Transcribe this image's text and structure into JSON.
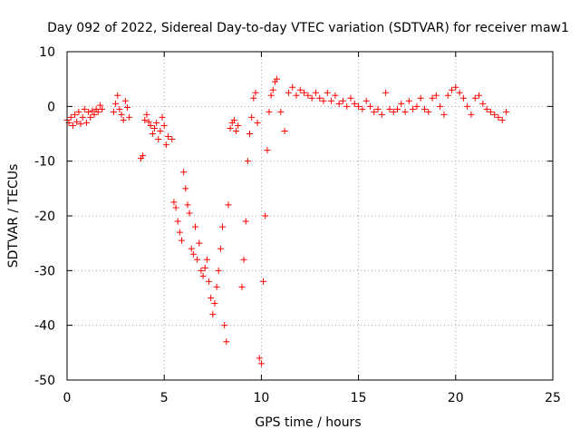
{
  "chart_data": {
    "type": "scatter",
    "title": "Day 092 of 2022, Sidereal Day-to-day VTEC variation (SDTVAR) for receiver maw1",
    "xlabel": "GPS time / hours",
    "ylabel": "SDTVAR / TECUs",
    "xlim": [
      0,
      25
    ],
    "ylim": [
      -50,
      10
    ],
    "xticks": [
      0,
      5,
      10,
      15,
      20,
      25
    ],
    "yticks": [
      -50,
      -40,
      -30,
      -20,
      -10,
      0,
      10
    ],
    "grid": true,
    "marker": "+",
    "series": [
      {
        "name": "SDTVAR",
        "color": "#ff0000",
        "x": [
          0.0,
          0.1,
          0.2,
          0.3,
          0.4,
          0.5,
          0.6,
          0.7,
          0.8,
          0.9,
          1.0,
          1.1,
          1.2,
          1.3,
          1.4,
          1.5,
          1.6,
          1.7,
          1.8,
          2.4,
          2.5,
          2.6,
          2.7,
          2.8,
          2.9,
          3.0,
          3.1,
          3.2,
          3.8,
          3.9,
          4.0,
          4.1,
          4.2,
          4.3,
          4.4,
          4.5,
          4.6,
          4.7,
          4.8,
          4.9,
          5.0,
          5.1,
          5.2,
          5.4,
          5.5,
          5.6,
          5.7,
          5.8,
          5.9,
          6.0,
          6.1,
          6.2,
          6.3,
          6.4,
          6.5,
          6.6,
          6.7,
          6.8,
          6.9,
          7.0,
          7.1,
          7.2,
          7.3,
          7.4,
          7.5,
          7.6,
          7.7,
          7.8,
          7.9,
          8.0,
          8.1,
          8.2,
          8.3,
          8.4,
          8.5,
          8.6,
          8.7,
          8.8,
          9.0,
          9.1,
          9.2,
          9.3,
          9.4,
          9.5,
          9.6,
          9.7,
          9.8,
          9.9,
          10.0,
          10.1,
          10.2,
          10.3,
          10.4,
          10.5,
          10.6,
          10.7,
          10.8,
          11.0,
          11.2,
          11.4,
          11.6,
          11.8,
          12.0,
          12.2,
          12.4,
          12.6,
          12.8,
          13.0,
          13.2,
          13.4,
          13.6,
          13.8,
          14.0,
          14.2,
          14.4,
          14.6,
          14.8,
          15.0,
          15.2,
          15.4,
          15.6,
          15.8,
          16.0,
          16.2,
          16.4,
          16.6,
          16.8,
          17.0,
          17.2,
          17.4,
          17.6,
          17.8,
          18.0,
          18.2,
          18.4,
          18.6,
          18.8,
          19.0,
          19.2,
          19.4,
          19.6,
          19.8,
          20.0,
          20.2,
          20.4,
          20.6,
          20.8,
          21.0,
          21.2,
          21.4,
          21.6,
          21.8,
          22.0,
          22.2,
          22.4,
          22.6
        ],
        "y": [
          -2.5,
          -3.0,
          -2.0,
          -3.5,
          -1.5,
          -2.8,
          -1.0,
          -3.2,
          -2.0,
          -0.5,
          -3.0,
          -1.0,
          -2.0,
          -0.8,
          -1.5,
          -0.5,
          -1.0,
          0.2,
          -0.5,
          -1.0,
          0.5,
          2.0,
          -0.5,
          -1.5,
          -2.5,
          1.0,
          -0.2,
          -2.0,
          -9.5,
          -9.0,
          -2.5,
          -1.5,
          -2.8,
          -3.5,
          -5.0,
          -4.0,
          -3.0,
          -6.0,
          -4.5,
          -2.0,
          -3.5,
          -7.0,
          -5.5,
          -6.0,
          -17.5,
          -18.5,
          -21.0,
          -23.0,
          -24.5,
          -12.0,
          -15.0,
          -18.0,
          -19.5,
          -26.0,
          -27.0,
          -22.0,
          -28.0,
          -25.0,
          -30.0,
          -31.0,
          -29.5,
          -28.0,
          -32.0,
          -35.0,
          -38.0,
          -36.0,
          -33.0,
          -30.0,
          -26.0,
          -22.0,
          -40.0,
          -43.0,
          -18.0,
          -4.0,
          -3.0,
          -2.5,
          -4.5,
          -3.5,
          -33.0,
          -28.0,
          -21.0,
          -10.0,
          -5.0,
          -2.0,
          1.5,
          2.5,
          -3.0,
          -46.0,
          -47.0,
          -32.0,
          -20.0,
          -8.0,
          -1.0,
          2.0,
          3.0,
          4.5,
          5.0,
          -1.0,
          -4.5,
          2.5,
          3.5,
          2.0,
          3.0,
          2.5,
          2.0,
          1.5,
          2.5,
          1.5,
          1.0,
          2.5,
          1.0,
          2.0,
          0.5,
          1.0,
          0.0,
          1.5,
          0.5,
          0.0,
          -0.5,
          1.0,
          0.0,
          -1.0,
          -0.5,
          -1.5,
          2.5,
          -0.5,
          -1.0,
          -0.5,
          0.5,
          -1.0,
          1.0,
          -0.5,
          0.0,
          1.5,
          -0.5,
          -1.0,
          1.5,
          2.0,
          0.0,
          -1.5,
          2.0,
          3.0,
          3.5,
          2.5,
          1.5,
          0.0,
          -1.5,
          1.5,
          2.0,
          0.5,
          -0.5,
          -1.0,
          -1.5,
          -2.0,
          -2.5,
          -1.0
        ]
      }
    ]
  }
}
